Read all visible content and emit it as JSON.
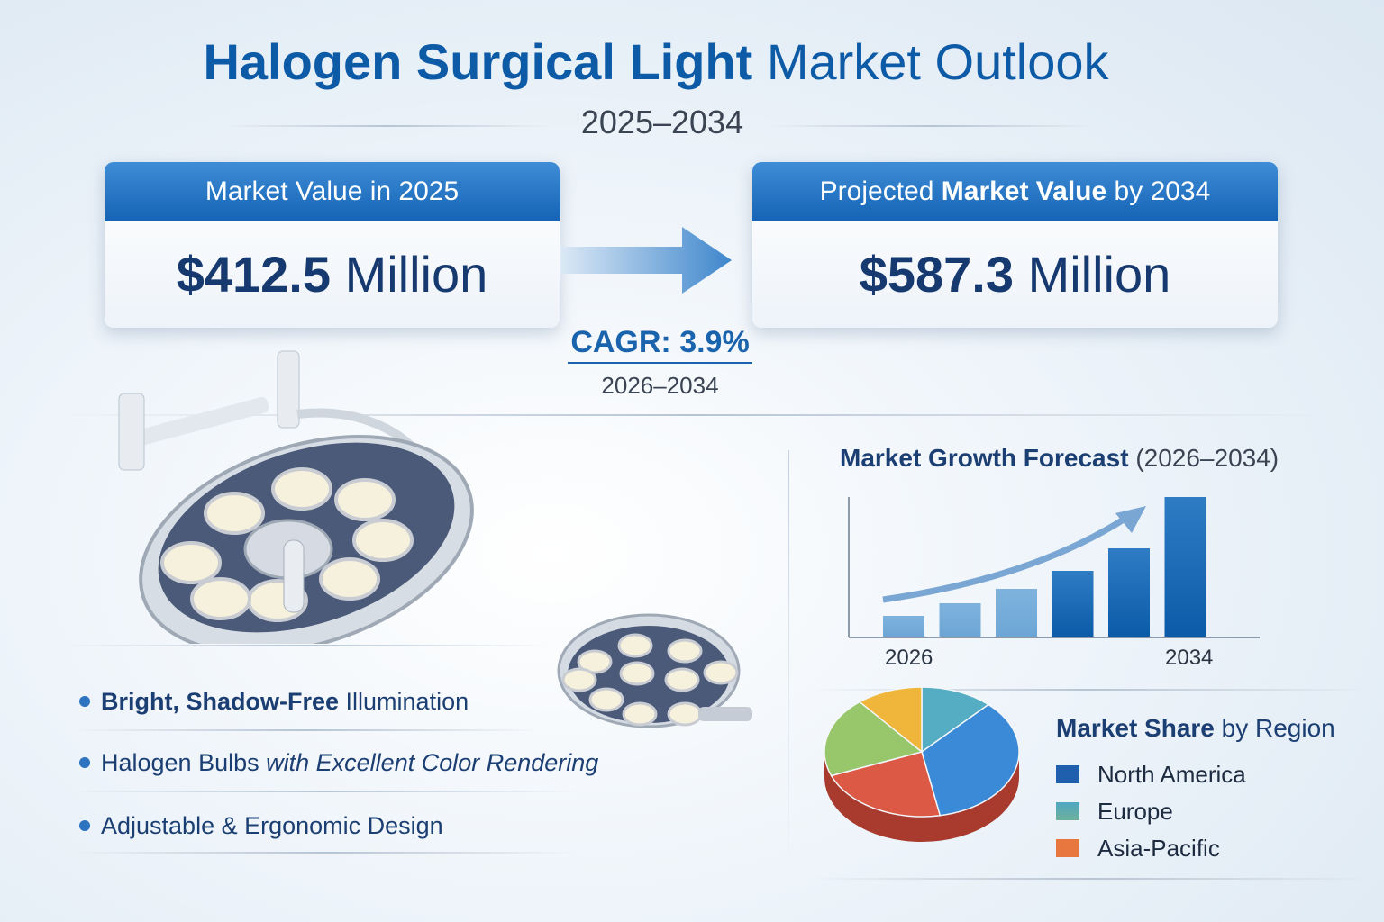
{
  "header": {
    "title_bold": "Halogen Surgical Light",
    "title_rest": "Market Outlook",
    "period": "2025–2034"
  },
  "cards": [
    {
      "header": "Market Value in 2025",
      "value_bold": "$412.5",
      "value_unit": "Million"
    },
    {
      "header_light": "Projected",
      "header_bold": "Market Value",
      "header_rest": "by 2034",
      "value_bold": "$587.3",
      "value_unit": "Million"
    }
  ],
  "cagr": {
    "label": "CAGR: 3.9%",
    "period": "2026–2034"
  },
  "features": [
    {
      "bold": "Bright, Shadow-Free",
      "rest": "Illumination"
    },
    {
      "bold": "Halogen Bulbs",
      "italic": "with Excellent Color Rendering"
    },
    {
      "bold": "",
      "rest": "Adjustable & Ergonomic Design"
    }
  ],
  "colors": {
    "accent": "#1463b5",
    "title": "#0d5aa7"
  },
  "chart_data": [
    {
      "type": "bar",
      "title_bold": "Market Growth Forecast",
      "title_rest": "(2026–2034)",
      "categories": [
        "2026",
        "",
        "",
        "",
        "",
        "2034"
      ],
      "values": [
        23,
        37,
        53,
        73,
        98,
        155
      ],
      "tick_labels": [
        "2026",
        "2034"
      ],
      "ylabel": "",
      "xlabel": "",
      "trend_arrow": true
    },
    {
      "type": "pie",
      "title_bold": "Market Share",
      "title_rest": "by Region",
      "legend": [
        {
          "name": "North America",
          "color": "#1f5fae"
        },
        {
          "name": "Europe",
          "color": "#4fa7c2"
        },
        {
          "name": "Asia-Pacific",
          "color": "#e8773f"
        }
      ],
      "slices": [
        {
          "name": "Europe",
          "value": 12,
          "color": "#55adc4"
        },
        {
          "name": "North America",
          "value": 35,
          "color": "#3a8ad8"
        },
        {
          "name": "Asia-Pacific",
          "value": 22,
          "color": "#dc5a45"
        },
        {
          "name": "Other (green)",
          "value": 20,
          "color": "#98c66a"
        },
        {
          "name": "Other (yellow)",
          "value": 11,
          "color": "#f0b63c"
        }
      ]
    }
  ]
}
